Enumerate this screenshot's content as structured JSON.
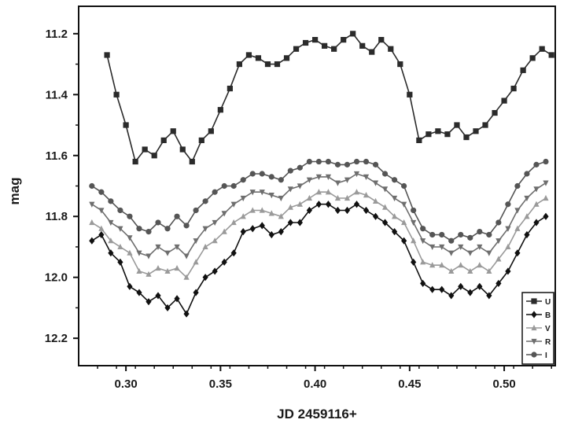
{
  "chart_data": {
    "type": "line",
    "title": "",
    "xlabel": "JD 2459116+",
    "ylabel": "mag",
    "xlim": [
      0.275,
      0.527
    ],
    "ylim": [
      12.29,
      11.11
    ],
    "y_inverted": true,
    "x_ticks": [
      0.3,
      0.35,
      0.4,
      0.45,
      0.5
    ],
    "x_tick_labels": [
      "0.30",
      "0.35",
      "0.40",
      "0.45",
      "0.50"
    ],
    "y_ticks": [
      11.2,
      11.4,
      11.6,
      11.8,
      12.0,
      12.2
    ],
    "y_tick_labels": [
      "11.2",
      "11.4",
      "11.6",
      "11.8",
      "12.0",
      "12.2"
    ],
    "grid": false,
    "legend_position": "bottom-right",
    "series": [
      {
        "name": "U",
        "color": "#2b2b2b",
        "marker": "square",
        "x": [
          0.29,
          0.295,
          0.3,
          0.305,
          0.31,
          0.315,
          0.32,
          0.325,
          0.33,
          0.335,
          0.34,
          0.345,
          0.35,
          0.355,
          0.36,
          0.365,
          0.37,
          0.375,
          0.38,
          0.385,
          0.39,
          0.395,
          0.4,
          0.405,
          0.41,
          0.415,
          0.42,
          0.425,
          0.43,
          0.435,
          0.44,
          0.445,
          0.45,
          0.455,
          0.46,
          0.465,
          0.47,
          0.475,
          0.48,
          0.485,
          0.49,
          0.495,
          0.5,
          0.505,
          0.51,
          0.515,
          0.52,
          0.525
        ],
        "y": [
          11.27,
          11.4,
          11.5,
          11.62,
          11.58,
          11.6,
          11.55,
          11.52,
          11.58,
          11.62,
          11.55,
          11.52,
          11.45,
          11.38,
          11.3,
          11.27,
          11.28,
          11.3,
          11.3,
          11.28,
          11.25,
          11.23,
          11.22,
          11.24,
          11.25,
          11.22,
          11.2,
          11.24,
          11.26,
          11.22,
          11.25,
          11.3,
          11.4,
          11.55,
          11.53,
          11.52,
          11.53,
          11.5,
          11.54,
          11.52,
          11.5,
          11.46,
          11.42,
          11.38,
          11.32,
          11.28,
          11.25,
          11.27
        ]
      },
      {
        "name": "B",
        "color": "#111111",
        "marker": "diamond",
        "x": [
          0.282,
          0.287,
          0.292,
          0.297,
          0.302,
          0.307,
          0.312,
          0.317,
          0.322,
          0.327,
          0.332,
          0.337,
          0.342,
          0.347,
          0.352,
          0.357,
          0.362,
          0.367,
          0.372,
          0.377,
          0.382,
          0.387,
          0.392,
          0.397,
          0.402,
          0.407,
          0.412,
          0.417,
          0.422,
          0.427,
          0.432,
          0.437,
          0.442,
          0.447,
          0.452,
          0.457,
          0.462,
          0.467,
          0.472,
          0.477,
          0.482,
          0.487,
          0.492,
          0.497,
          0.502,
          0.507,
          0.512,
          0.517,
          0.522
        ],
        "y": [
          11.88,
          11.86,
          11.92,
          11.95,
          12.03,
          12.05,
          12.08,
          12.06,
          12.1,
          12.07,
          12.12,
          12.05,
          12.0,
          11.98,
          11.95,
          11.92,
          11.85,
          11.84,
          11.83,
          11.86,
          11.85,
          11.82,
          11.82,
          11.78,
          11.76,
          11.76,
          11.78,
          11.78,
          11.76,
          11.78,
          11.8,
          11.82,
          11.85,
          11.88,
          11.95,
          12.02,
          12.04,
          12.04,
          12.06,
          12.03,
          12.05,
          12.03,
          12.06,
          12.02,
          11.98,
          11.92,
          11.86,
          11.82,
          11.8
        ]
      },
      {
        "name": "V",
        "color": "#9a9a9a",
        "marker": "triangle",
        "x": [
          0.282,
          0.287,
          0.292,
          0.297,
          0.302,
          0.307,
          0.312,
          0.317,
          0.322,
          0.327,
          0.332,
          0.337,
          0.342,
          0.347,
          0.352,
          0.357,
          0.362,
          0.367,
          0.372,
          0.377,
          0.382,
          0.387,
          0.392,
          0.397,
          0.402,
          0.407,
          0.412,
          0.417,
          0.422,
          0.427,
          0.432,
          0.437,
          0.442,
          0.447,
          0.452,
          0.457,
          0.462,
          0.467,
          0.472,
          0.477,
          0.482,
          0.487,
          0.492,
          0.497,
          0.502,
          0.507,
          0.512,
          0.517,
          0.522
        ],
        "y": [
          11.82,
          11.84,
          11.88,
          11.9,
          11.92,
          11.98,
          11.99,
          11.97,
          11.98,
          11.97,
          12.0,
          11.95,
          11.9,
          11.88,
          11.85,
          11.82,
          11.8,
          11.78,
          11.78,
          11.79,
          11.8,
          11.77,
          11.76,
          11.74,
          11.72,
          11.72,
          11.74,
          11.74,
          11.72,
          11.73,
          11.75,
          11.77,
          11.8,
          11.82,
          11.88,
          11.95,
          11.96,
          11.96,
          11.98,
          11.96,
          11.98,
          11.96,
          11.98,
          11.94,
          11.9,
          11.84,
          11.8,
          11.76,
          11.74
        ]
      },
      {
        "name": "R",
        "color": "#6e6e6e",
        "marker": "triangle-down",
        "x": [
          0.282,
          0.287,
          0.292,
          0.297,
          0.302,
          0.307,
          0.312,
          0.317,
          0.322,
          0.327,
          0.332,
          0.337,
          0.342,
          0.347,
          0.352,
          0.357,
          0.362,
          0.367,
          0.372,
          0.377,
          0.382,
          0.387,
          0.392,
          0.397,
          0.402,
          0.407,
          0.412,
          0.417,
          0.422,
          0.427,
          0.432,
          0.437,
          0.442,
          0.447,
          0.452,
          0.457,
          0.462,
          0.467,
          0.472,
          0.477,
          0.482,
          0.487,
          0.492,
          0.497,
          0.502,
          0.507,
          0.512,
          0.517,
          0.522
        ],
        "y": [
          11.76,
          11.78,
          11.82,
          11.84,
          11.87,
          11.92,
          11.93,
          11.9,
          11.92,
          11.9,
          11.93,
          11.88,
          11.84,
          11.82,
          11.79,
          11.76,
          11.74,
          11.72,
          11.72,
          11.73,
          11.74,
          11.71,
          11.7,
          11.68,
          11.67,
          11.67,
          11.69,
          11.68,
          11.66,
          11.67,
          11.69,
          11.71,
          11.74,
          11.76,
          11.82,
          11.88,
          11.9,
          11.9,
          11.92,
          11.9,
          11.92,
          11.9,
          11.92,
          11.88,
          11.84,
          11.78,
          11.74,
          11.71,
          11.69
        ]
      },
      {
        "name": "I",
        "color": "#555555",
        "marker": "circle",
        "x": [
          0.282,
          0.287,
          0.292,
          0.297,
          0.302,
          0.307,
          0.312,
          0.317,
          0.322,
          0.327,
          0.332,
          0.337,
          0.342,
          0.347,
          0.352,
          0.357,
          0.362,
          0.367,
          0.372,
          0.377,
          0.382,
          0.387,
          0.392,
          0.397,
          0.402,
          0.407,
          0.412,
          0.417,
          0.422,
          0.427,
          0.432,
          0.437,
          0.442,
          0.447,
          0.452,
          0.457,
          0.462,
          0.467,
          0.472,
          0.477,
          0.482,
          0.487,
          0.492,
          0.497,
          0.502,
          0.507,
          0.512,
          0.517,
          0.522
        ],
        "y": [
          11.7,
          11.72,
          11.75,
          11.78,
          11.8,
          11.84,
          11.85,
          11.82,
          11.84,
          11.8,
          11.83,
          11.78,
          11.75,
          11.72,
          11.7,
          11.7,
          11.68,
          11.66,
          11.66,
          11.67,
          11.68,
          11.65,
          11.64,
          11.62,
          11.62,
          11.62,
          11.63,
          11.63,
          11.62,
          11.62,
          11.63,
          11.66,
          11.68,
          11.7,
          11.78,
          11.84,
          11.86,
          11.86,
          11.88,
          11.86,
          11.87,
          11.85,
          11.86,
          11.82,
          11.76,
          11.7,
          11.66,
          11.63,
          11.62
        ]
      }
    ]
  }
}
